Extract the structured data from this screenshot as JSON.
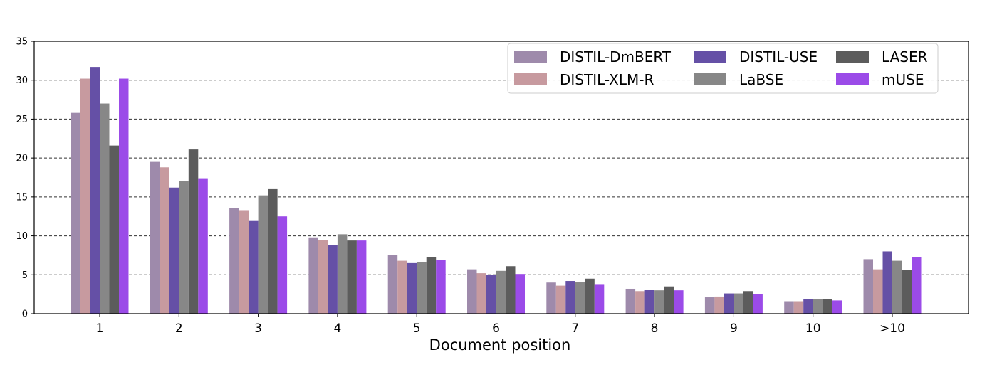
{
  "chart_data": {
    "type": "bar",
    "title": "",
    "xlabel": "Document position",
    "ylabel": "",
    "categories": [
      "1",
      "2",
      "3",
      "4",
      "5",
      "6",
      "7",
      "8",
      "9",
      "10",
      ">10"
    ],
    "ylim": [
      0,
      35
    ],
    "yticks": [
      0,
      5,
      10,
      15,
      20,
      25,
      30,
      35
    ],
    "grid": "horizontal dashed",
    "legend_position": "top-right",
    "series": [
      {
        "name": "DISTIL-DmBERT",
        "color": "#9e8aab",
        "values": [
          25.8,
          19.5,
          13.6,
          9.8,
          7.5,
          5.7,
          4.0,
          3.2,
          2.1,
          1.6,
          7.0
        ]
      },
      {
        "name": "DISTIL-XLM-R",
        "color": "#c79a9f",
        "values": [
          30.2,
          18.8,
          13.3,
          9.5,
          6.8,
          5.2,
          3.6,
          2.9,
          2.2,
          1.6,
          5.7
        ]
      },
      {
        "name": "DISTIL-USE",
        "color": "#6550a6",
        "values": [
          31.7,
          16.2,
          12.0,
          8.8,
          6.5,
          5.0,
          4.2,
          3.1,
          2.6,
          1.9,
          8.0
        ]
      },
      {
        "name": "LaBSE",
        "color": "#878787",
        "values": [
          27.0,
          17.0,
          15.2,
          10.2,
          6.6,
          5.5,
          4.1,
          3.0,
          2.6,
          1.9,
          6.8
        ]
      },
      {
        "name": "LASER",
        "color": "#5c5c5c",
        "values": [
          21.6,
          21.1,
          16.0,
          9.4,
          7.3,
          6.1,
          4.5,
          3.5,
          2.9,
          1.9,
          5.6
        ]
      },
      {
        "name": "mUSE",
        "color": "#9b4be8",
        "values": [
          30.2,
          17.4,
          12.5,
          9.4,
          6.9,
          5.1,
          3.8,
          3.0,
          2.5,
          1.7,
          7.3
        ]
      }
    ]
  }
}
